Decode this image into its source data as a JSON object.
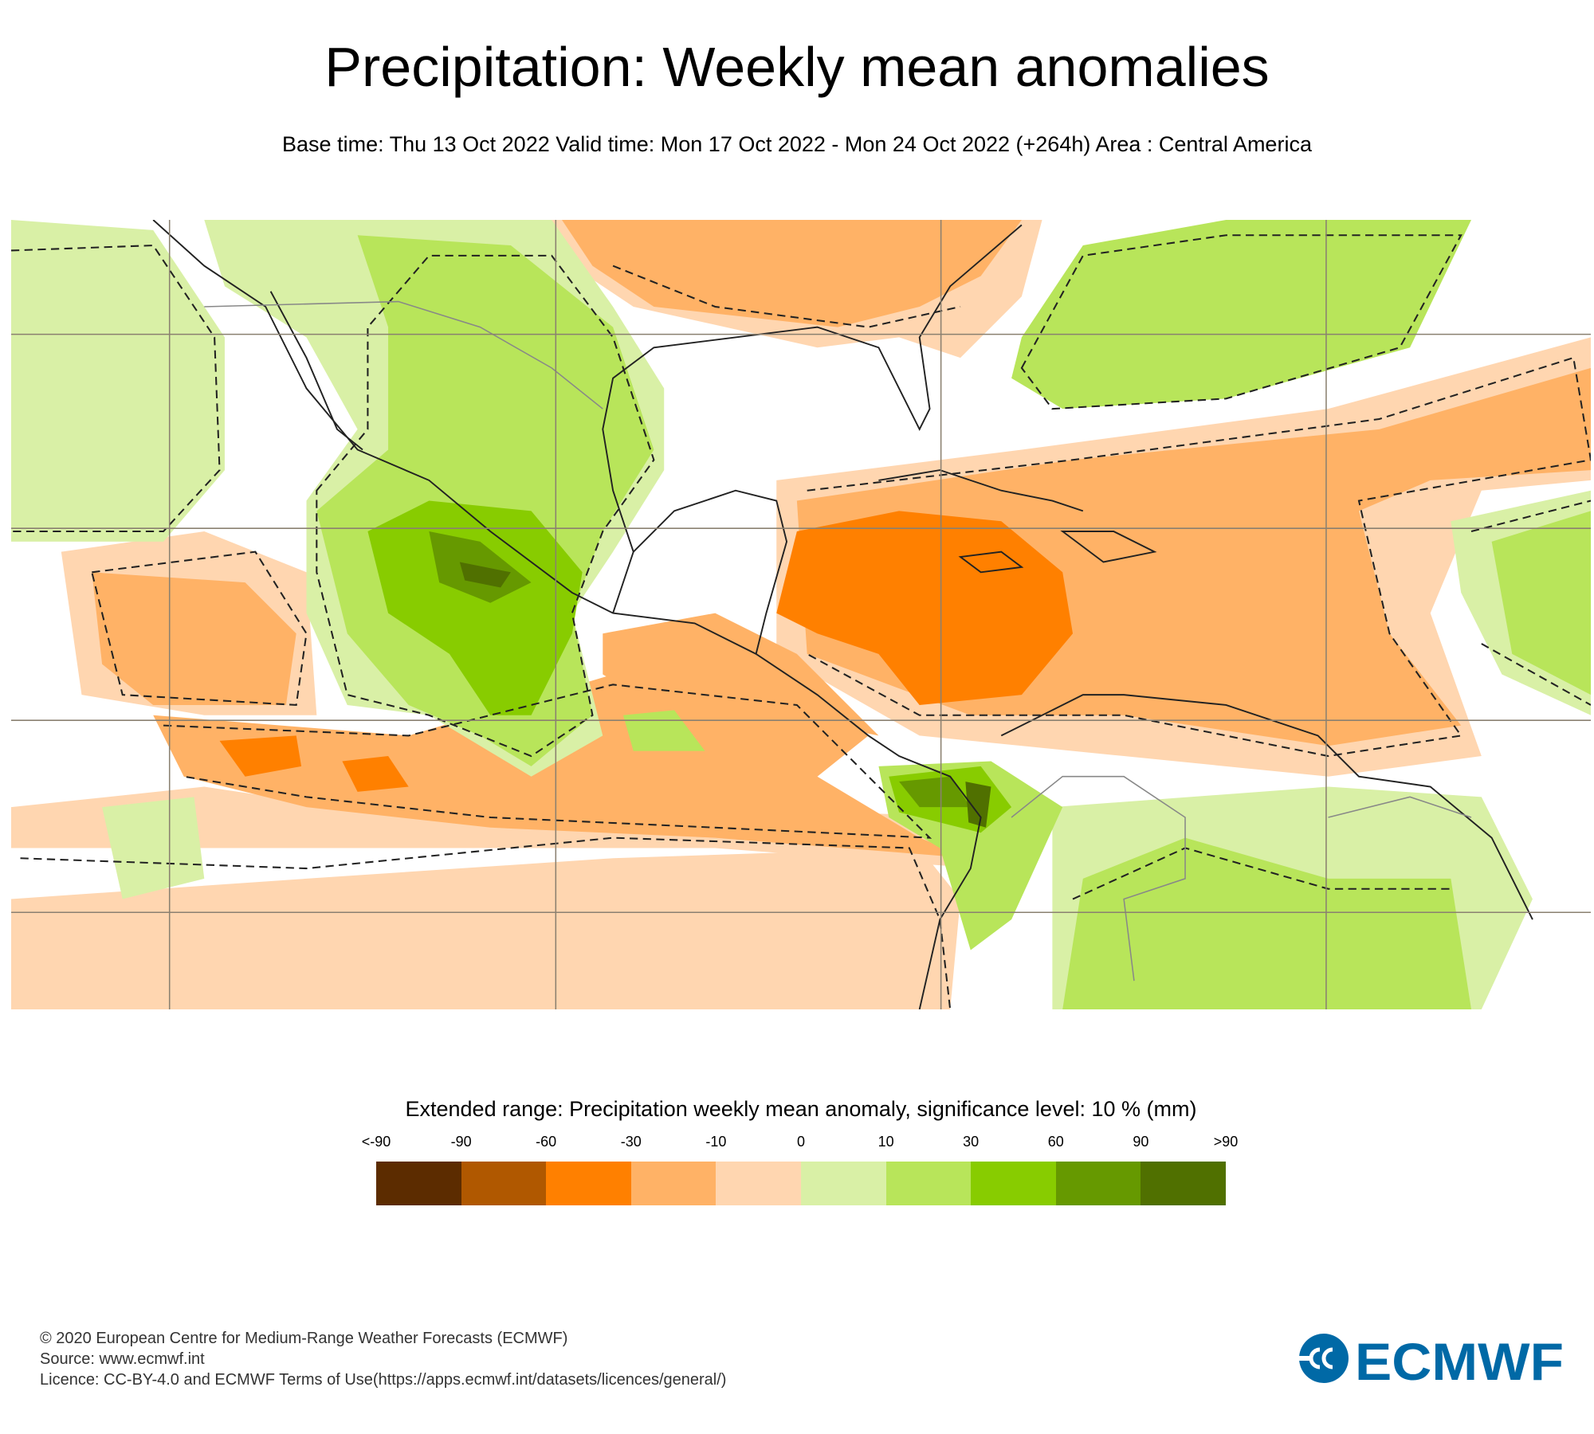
{
  "header": {
    "title": "Precipitation: Weekly mean anomalies",
    "subtitle": "Base time: Thu 13 Oct 2022 Valid time: Mon 17 Oct 2022 - Mon 24 Oct 2022 (+264h) Area : Central America"
  },
  "map": {
    "area": "Central America",
    "colors": {
      "lt_m90": "#5c2c00",
      "m90_m60": "#b05800",
      "m60_m30": "#ff8000",
      "m30_m10": "#ffb266",
      "m10_0": "#ffd6b0",
      "0_10": "#d9f0a6",
      "10_30": "#b8e55a",
      "30_60": "#88cc00",
      "60_90": "#669900",
      "gt_90": "#507000"
    }
  },
  "legend": {
    "title": "Extended range: Precipitation weekly mean anomaly, significance level: 10 % (mm)",
    "labels": [
      "<-90",
      "-90",
      "-60",
      "-30",
      "-10",
      "0",
      "10",
      "30",
      "60",
      "90",
      ">90"
    ],
    "colors": [
      "#5c2c00",
      "#b05800",
      "#ff8000",
      "#ffb266",
      "#ffd6b0",
      "#d9f0a6",
      "#b8e55a",
      "#88cc00",
      "#669900",
      "#507000"
    ]
  },
  "footer": {
    "copyright": "© 2020 European Centre for Medium-Range Weather Forecasts (ECMWF)",
    "source": "Source: www.ecmwf.int",
    "licence": "Licence: CC-BY-4.0 and ECMWF Terms of Use(https://apps.ecmwf.int/datasets/licences/general/)"
  },
  "logo": {
    "text": "ECMWF",
    "color": "#0069a6"
  }
}
